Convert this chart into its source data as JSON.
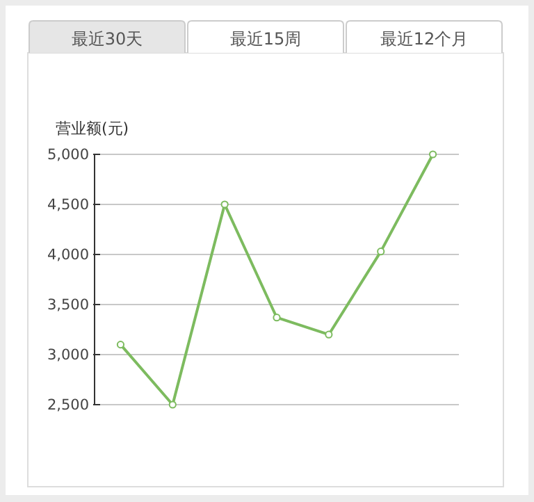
{
  "chart_data": {
    "type": "line",
    "ylabel": "营业额(元)",
    "annotations": [
      "最近30天",
      "最近15周",
      "最近12个月"
    ],
    "categories": [
      null,
      null,
      null,
      null,
      null,
      null,
      null
    ],
    "series": [
      {
        "color": "#7dbb5f",
        "values": [
          3100,
          2500,
          4500,
          3370,
          3200,
          4030,
          5000
        ]
      }
    ],
    "ylim": [
      2500,
      5000
    ],
    "yticks": [
      {
        "value": 2500,
        "label": "2,500"
      },
      {
        "value": 3000,
        "label": "3,000"
      },
      {
        "value": 3500,
        "label": "3,500"
      },
      {
        "value": 4000,
        "label": "4,000"
      },
      {
        "value": 4500,
        "label": "4,500"
      },
      {
        "value": 5000,
        "label": "5,000"
      }
    ],
    "grid": "y",
    "marker": "circle"
  }
}
